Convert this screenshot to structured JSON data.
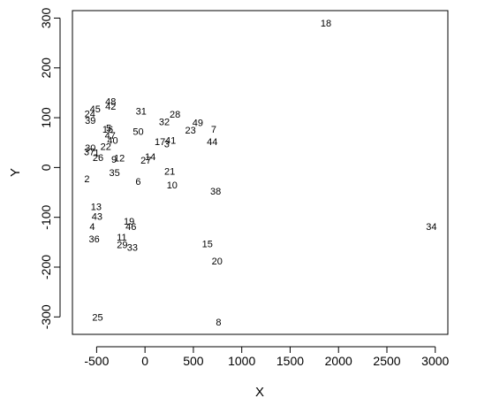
{
  "chart_data": {
    "type": "scatter",
    "title": "",
    "xlabel": "X",
    "ylabel": "Y",
    "xlim": [
      -750,
      3130
    ],
    "ylim": [
      -335,
      315
    ],
    "xticks": [
      -500,
      0,
      500,
      1000,
      1500,
      2000,
      2500,
      3000
    ],
    "yticks": [
      -300,
      -200,
      -100,
      0,
      100,
      200,
      300
    ],
    "marker": "text-labels",
    "points": [
      {
        "label": "2",
        "x": -600,
        "y": -22
      },
      {
        "label": "4",
        "x": -545,
        "y": -118
      },
      {
        "label": "6",
        "x": -70,
        "y": -28
      },
      {
        "label": "7",
        "x": 710,
        "y": 77
      },
      {
        "label": "8",
        "x": 760,
        "y": -310
      },
      {
        "label": "9",
        "x": -320,
        "y": 17
      },
      {
        "label": "10",
        "x": 280,
        "y": -35
      },
      {
        "label": "11",
        "x": -240,
        "y": -140
      },
      {
        "label": "12",
        "x": -265,
        "y": 19
      },
      {
        "label": "13",
        "x": -505,
        "y": -78
      },
      {
        "label": "14",
        "x": 55,
        "y": 22
      },
      {
        "label": "15",
        "x": 645,
        "y": -153
      },
      {
        "label": "16",
        "x": -385,
        "y": 77
      },
      {
        "label": "17",
        "x": 155,
        "y": 52
      },
      {
        "label": "18",
        "x": 1870,
        "y": 290
      },
      {
        "label": "19",
        "x": -165,
        "y": -108
      },
      {
        "label": "20",
        "x": 745,
        "y": -188
      },
      {
        "label": "21",
        "x": 255,
        "y": -7
      },
      {
        "label": "22",
        "x": -405,
        "y": 42
      },
      {
        "label": "23",
        "x": 470,
        "y": 75
      },
      {
        "label": "24",
        "x": -570,
        "y": 108
      },
      {
        "label": "25",
        "x": -490,
        "y": -300
      },
      {
        "label": "26",
        "x": -485,
        "y": 20
      },
      {
        "label": "27",
        "x": 10,
        "y": 15
      },
      {
        "label": "28",
        "x": 310,
        "y": 107
      },
      {
        "label": "29",
        "x": -235,
        "y": -155
      },
      {
        "label": "30",
        "x": -565,
        "y": 40
      },
      {
        "label": "31",
        "x": -40,
        "y": 113
      },
      {
        "label": "32",
        "x": 200,
        "y": 92
      },
      {
        "label": "33",
        "x": -130,
        "y": -160
      },
      {
        "label": "34",
        "x": 2960,
        "y": -118
      },
      {
        "label": "35",
        "x": -315,
        "y": -10
      },
      {
        "label": "36",
        "x": -525,
        "y": -143
      },
      {
        "label": "37",
        "x": -575,
        "y": 32
      },
      {
        "label": "38",
        "x": 730,
        "y": -47
      },
      {
        "label": "39",
        "x": -565,
        "y": 95
      },
      {
        "label": "40",
        "x": -335,
        "y": 55
      },
      {
        "label": "41",
        "x": 265,
        "y": 55
      },
      {
        "label": "42",
        "x": -355,
        "y": 123
      },
      {
        "label": "43",
        "x": -495,
        "y": -98
      },
      {
        "label": "44",
        "x": 695,
        "y": 52
      },
      {
        "label": "45",
        "x": -515,
        "y": 118
      },
      {
        "label": "46",
        "x": -145,
        "y": -118
      },
      {
        "label": "47",
        "x": -360,
        "y": 65
      },
      {
        "label": "48",
        "x": -355,
        "y": 133
      },
      {
        "label": "49",
        "x": 545,
        "y": 90
      },
      {
        "label": "50",
        "x": -70,
        "y": 73
      },
      {
        "label": "1",
        "x": -500,
        "y": 30
      },
      {
        "label": "3",
        "x": 225,
        "y": 48
      },
      {
        "label": "5",
        "x": -375,
        "y": 80
      }
    ]
  }
}
